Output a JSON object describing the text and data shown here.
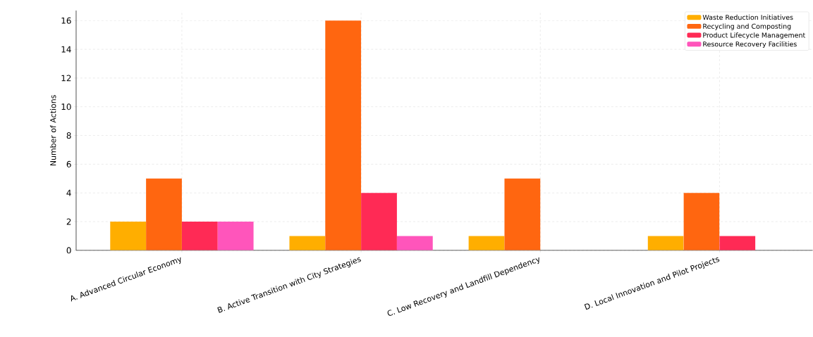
{
  "chart_data": {
    "type": "bar",
    "ylabel": "Number of Actions",
    "categories": [
      "A. Advanced Circular Economy",
      "B. Active Transition with City Strategies",
      "C. Low Recovery and Landfill Dependency",
      "D. Local Innovation and Pilot Projects"
    ],
    "series": [
      {
        "name": "Waste Reduction Initiatives",
        "color": "#ffae00",
        "values": [
          2,
          1,
          1,
          1
        ]
      },
      {
        "name": "Recycling and Composting",
        "color": "#ff6610",
        "values": [
          5,
          16,
          5,
          4
        ]
      },
      {
        "name": "Product Lifecycle Management",
        "color": "#ff2a55",
        "values": [
          2,
          4,
          0,
          1
        ]
      },
      {
        "name": "Resource Recovery Facilities",
        "color": "#ff55bb",
        "values": [
          2,
          1,
          0,
          0
        ]
      }
    ],
    "ylim": [
      0,
      16.7
    ],
    "yticks": [
      0,
      2,
      4,
      6,
      8,
      10,
      12,
      14,
      16
    ],
    "grid": true,
    "legend": "top right"
  }
}
